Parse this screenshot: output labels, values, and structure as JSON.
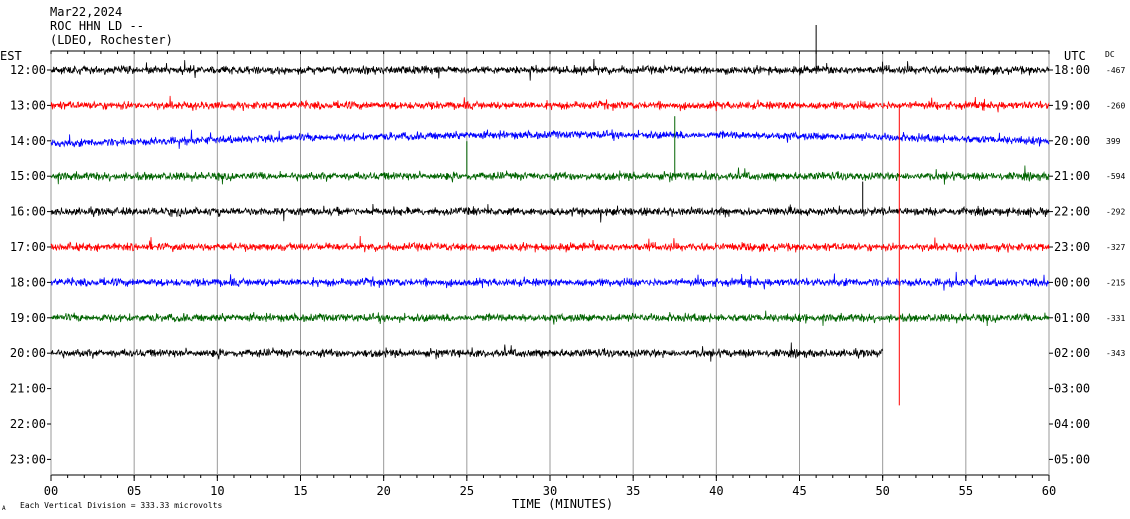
{
  "header": {
    "date": "Mar22,2024",
    "station": "ROC HHN LD --",
    "network": "(LDEO, Rochester)"
  },
  "labels": {
    "left_tz": "EST",
    "right_tz": "UTC",
    "dc": "DC",
    "xlabel": "TIME (MINUTES)",
    "footnote": "Each Vertical Division =  333.33 microvolts"
  },
  "colors": {
    "black": "#000000",
    "red": "#ff0000",
    "blue": "#0000ff",
    "green": "#006400"
  },
  "chart_data": {
    "type": "line",
    "title": "ROC HHN LD --",
    "xlabel": "TIME (MINUTES)",
    "xlim": [
      0,
      60
    ],
    "x_ticks": [
      "00",
      "05",
      "10",
      "15",
      "20",
      "25",
      "30",
      "35",
      "40",
      "45",
      "50",
      "55",
      "60"
    ],
    "rows": [
      {
        "est": "12:00",
        "utc": "18:00",
        "dc": "-467",
        "color": "black",
        "end_min": 60
      },
      {
        "est": "13:00",
        "utc": "19:00",
        "dc": "-260",
        "color": "red",
        "end_min": 60
      },
      {
        "est": "14:00",
        "utc": "20:00",
        "dc": "399",
        "color": "blue",
        "end_min": 60
      },
      {
        "est": "15:00",
        "utc": "21:00",
        "dc": "-594",
        "color": "green",
        "end_min": 60
      },
      {
        "est": "16:00",
        "utc": "22:00",
        "dc": "-292",
        "color": "black",
        "end_min": 60
      },
      {
        "est": "17:00",
        "utc": "23:00",
        "dc": "-327",
        "color": "red",
        "end_min": 60
      },
      {
        "est": "18:00",
        "utc": "00:00",
        "dc": "-215",
        "color": "blue",
        "end_min": 60
      },
      {
        "est": "19:00",
        "utc": "01:00",
        "dc": "-331",
        "color": "green",
        "end_min": 60
      },
      {
        "est": "20:00",
        "utc": "02:00",
        "dc": "-343",
        "color": "black",
        "end_min": 50
      },
      {
        "est": "21:00",
        "utc": "03:00",
        "dc": "",
        "color": "",
        "end_min": 0
      },
      {
        "est": "22:00",
        "utc": "04:00",
        "dc": "",
        "color": "",
        "end_min": 0
      },
      {
        "est": "23:00",
        "utc": "05:00",
        "dc": "",
        "color": "",
        "end_min": 0
      }
    ]
  }
}
